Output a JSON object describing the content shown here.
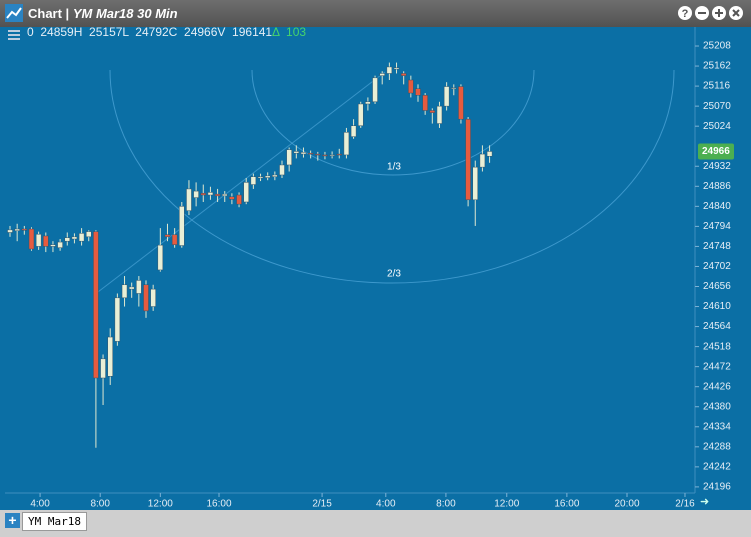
{
  "window": {
    "title": "Chart |",
    "symbol": "YM Mar18 30 Min"
  },
  "tabs": [
    "YM Mar18"
  ],
  "chart_data": {
    "type": "candlestick",
    "ohlc_header": "0  24859H  25157L  24792C  24966V  196141",
    "change": "Δ  103",
    "annotations": [
      "1/3",
      "2/3"
    ],
    "last_price": 24966,
    "up_color": "#e9efd6",
    "down_color": "#e65b3f",
    "last_price_color": "#4caf50",
    "open": [
      24780,
      24784,
      24788,
      24788,
      24748,
      24772,
      24748,
      24745,
      24760,
      24765,
      24760,
      24770,
      24782,
      24446,
      24450,
      24530,
      24630,
      24650,
      24640,
      24660,
      24610,
      24694,
      24775,
      24775,
      24750,
      24830,
      24860,
      24870,
      24866,
      24868,
      24864,
      24862,
      24866,
      24850,
      24890,
      24905,
      24906,
      24908,
      24912,
      24935,
      24962,
      24960,
      24962,
      24960,
      24958,
      24956,
      24960,
      24958,
      25000,
      25025,
      25075,
      25080,
      25140,
      25145,
      25155,
      25145,
      25130,
      25110,
      25095,
      25060,
      25030,
      25070,
      25110,
      25115,
      25040,
      24855,
      24930,
      24955
    ],
    "high": [
      24795,
      24800,
      24795,
      24792,
      24782,
      24780,
      24760,
      24765,
      24780,
      24778,
      24790,
      24785,
      24785,
      24500,
      24560,
      24640,
      24680,
      24665,
      24680,
      24670,
      24660,
      24790,
      24800,
      24790,
      24850,
      24900,
      24895,
      24890,
      24885,
      24880,
      24875,
      24870,
      24872,
      24905,
      24915,
      24915,
      24918,
      24920,
      24945,
      24975,
      24980,
      24975,
      24968,
      24965,
      24965,
      24966,
      24972,
      25020,
      25040,
      25080,
      25090,
      25140,
      25150,
      25170,
      25170,
      25150,
      25140,
      25120,
      25100,
      25065,
      25080,
      25125,
      25120,
      25120,
      25045,
      24945,
      24980,
      24980
    ],
    "low": [
      24770,
      24760,
      24775,
      24738,
      24740,
      24735,
      24735,
      24738,
      24750,
      24755,
      24750,
      24760,
      24286,
      24384,
      24430,
      24520,
      24610,
      24630,
      24610,
      24584,
      24600,
      24690,
      24760,
      24745,
      24745,
      24820,
      24840,
      24850,
      24855,
      24850,
      24850,
      24845,
      24838,
      24845,
      24880,
      24898,
      24900,
      24900,
      24905,
      24920,
      24950,
      24952,
      24950,
      24945,
      24948,
      24950,
      24950,
      24950,
      24995,
      25020,
      25060,
      25075,
      25120,
      25130,
      25145,
      25120,
      25090,
      25080,
      25050,
      25030,
      25020,
      25060,
      25095,
      25030,
      24840,
      24795,
      24920,
      24940
    ],
    "close": [
      24786,
      24788,
      24785,
      24742,
      24776,
      24748,
      24752,
      24758,
      24768,
      24770,
      24778,
      24782,
      24446,
      24490,
      24540,
      24630,
      24660,
      24655,
      24670,
      24600,
      24650,
      24751,
      24770,
      24752,
      24840,
      24880,
      24875,
      24866,
      24872,
      24864,
      24868,
      24856,
      24845,
      24895,
      24908,
      24908,
      24910,
      24912,
      24935,
      24970,
      24966,
      24964,
      24960,
      24958,
      24956,
      24958,
      24958,
      25010,
      25025,
      25075,
      25080,
      25135,
      25145,
      25160,
      25158,
      25140,
      25100,
      25095,
      25060,
      25055,
      25070,
      25115,
      25112,
      25040,
      24855,
      24930,
      24960,
      24966
    ],
    "xlim": [
      -0.7,
      95.7
    ],
    "xticks": [
      {
        "value": 4.2,
        "label": "4:00"
      },
      {
        "value": 12.6,
        "label": "8:00"
      },
      {
        "value": 21,
        "label": "12:00"
      },
      {
        "value": 29.2,
        "label": "16:00"
      },
      {
        "value": 43.6,
        "label": "2/15"
      },
      {
        "value": 52.5,
        "label": "4:00"
      },
      {
        "value": 60.9,
        "label": "8:00"
      },
      {
        "value": 69.4,
        "label": "12:00"
      },
      {
        "value": 77.8,
        "label": "16:00"
      },
      {
        "value": 86.2,
        "label": "20:00"
      },
      {
        "value": 94.3,
        "label": "2/16"
      }
    ],
    "ylim": [
      24182,
      25231
    ],
    "yticks": [
      25208,
      25162,
      25116,
      25070,
      25024,
      24932,
      24886,
      24840,
      24794,
      24748,
      24702,
      24656,
      24610,
      24564,
      24518,
      24472,
      24426,
      24380,
      24334,
      24288,
      24242,
      24196
    ]
  }
}
